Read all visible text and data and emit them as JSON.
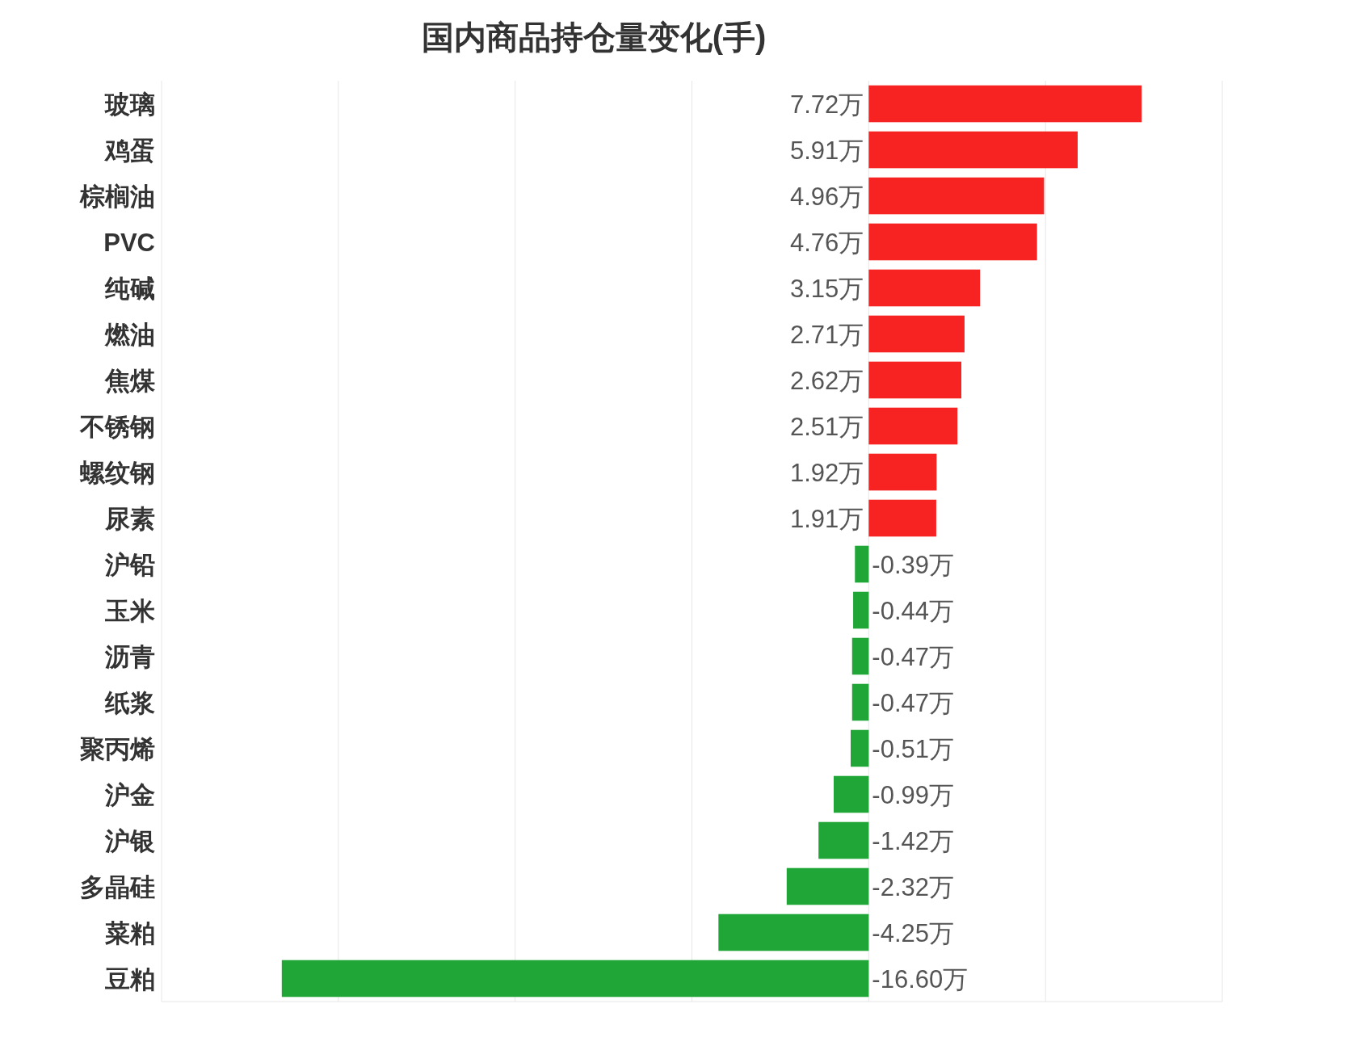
{
  "chart_data": {
    "type": "bar",
    "orientation": "horizontal",
    "title": "国内商品持仓量变化(手)",
    "categories": [
      "玻璃",
      "鸡蛋",
      "棕榈油",
      "PVC",
      "纯碱",
      "燃油",
      "焦煤",
      "不锈钢",
      "螺纹钢",
      "尿素",
      "沪铅",
      "玉米",
      "沥青",
      "纸浆",
      "聚丙烯",
      "沪金",
      "沪银",
      "多晶硅",
      "菜粕",
      "豆粕"
    ],
    "values": [
      7.72,
      5.91,
      4.96,
      4.76,
      3.15,
      2.71,
      2.62,
      2.51,
      1.92,
      1.91,
      -0.39,
      -0.44,
      -0.47,
      -0.47,
      -0.51,
      -0.99,
      -1.42,
      -2.32,
      -4.25,
      -16.6
    ],
    "value_labels": [
      "7.72万",
      "5.91万",
      "4.96万",
      "4.76万",
      "3.15万",
      "2.71万",
      "2.62万",
      "2.51万",
      "1.92万",
      "1.91万",
      "-0.39万",
      "-0.44万",
      "-0.47万",
      "-0.47万",
      "-0.51万",
      "-0.99万",
      "-1.42万",
      "-2.32万",
      "-4.25万",
      "-16.60万"
    ],
    "colors": [
      "#f72323",
      "#f72323",
      "#f72323",
      "#f72323",
      "#f72323",
      "#f72323",
      "#f72323",
      "#f72323",
      "#f72323",
      "#f72323",
      "#1fa637",
      "#1fa637",
      "#1fa637",
      "#1fa637",
      "#1fa637",
      "#1fa637",
      "#1fa637",
      "#1fa637",
      "#1fa637",
      "#1fa637"
    ],
    "xlim": [
      -20,
      10
    ],
    "xticks": [
      {
        "value": -20,
        "label": null
      },
      {
        "value": -15,
        "label": null
      },
      {
        "value": -10,
        "label": null
      },
      {
        "value": -5,
        "label": null
      },
      {
        "value": 0,
        "label": null
      },
      {
        "value": 5,
        "label": null
      },
      {
        "value": 10,
        "label": null
      }
    ],
    "grid": "x",
    "tick_labels": "y"
  }
}
